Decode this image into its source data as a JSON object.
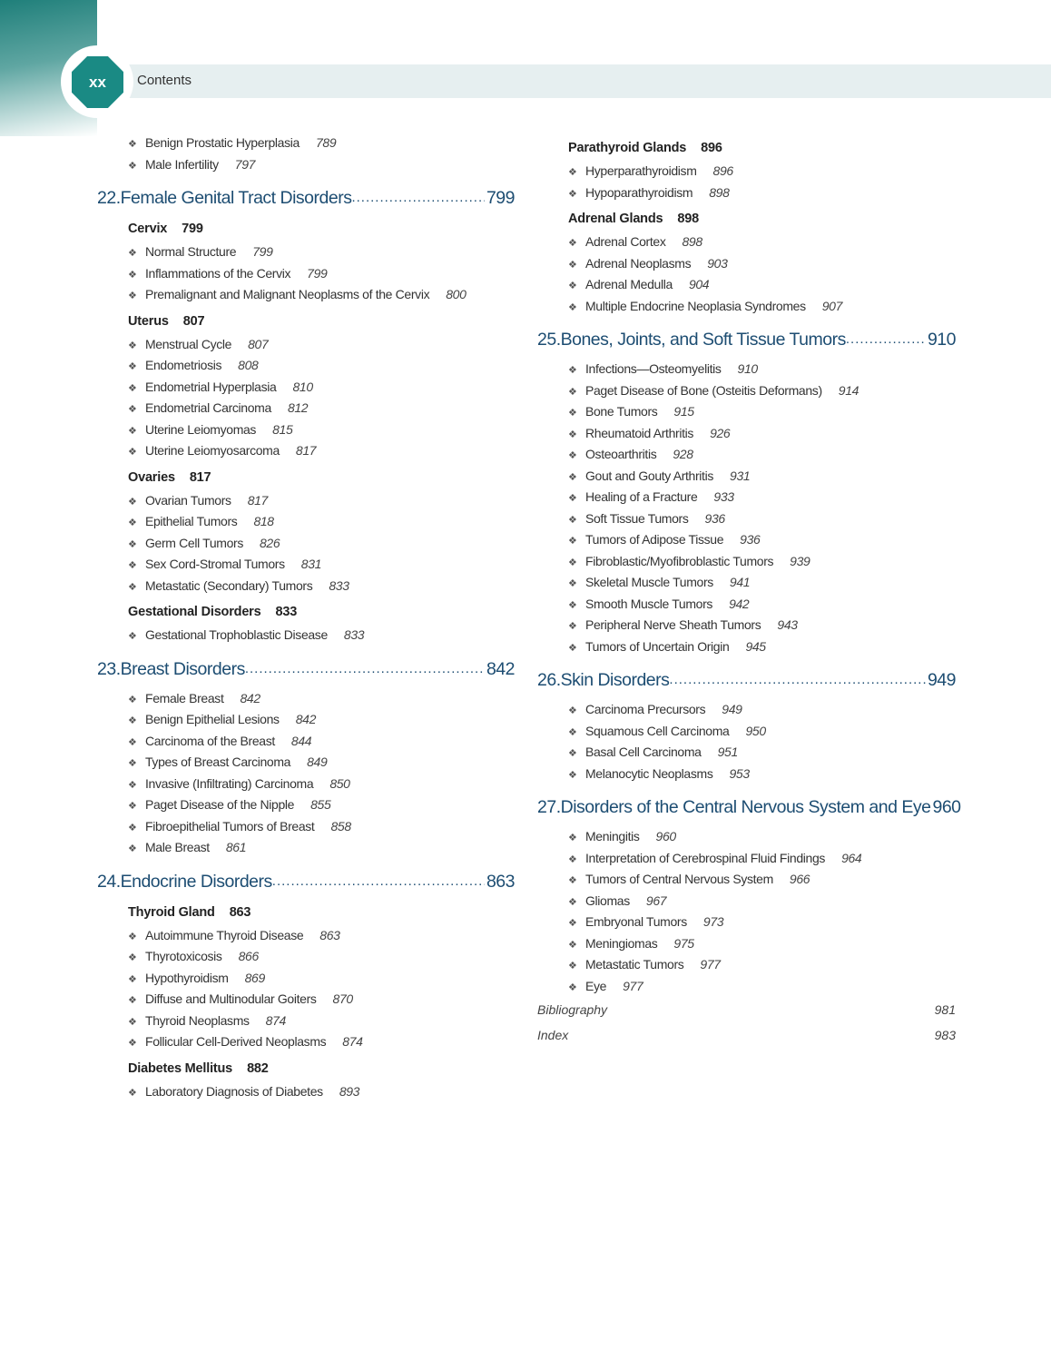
{
  "header": {
    "page_number": "xx",
    "title": "Contents",
    "accent": "#1a8a84"
  },
  "left": [
    {
      "type": "item",
      "text": "Benign Prostatic Hyperplasia",
      "page": "789"
    },
    {
      "type": "item",
      "text": "Male Infertility",
      "page": "797"
    },
    {
      "type": "chapter",
      "num": "22.",
      "text": "Female Genital Tract Disorders",
      "page": "799"
    },
    {
      "type": "sub",
      "text": "Cervix",
      "page": "799"
    },
    {
      "type": "item",
      "text": "Normal Structure",
      "page": "799"
    },
    {
      "type": "item",
      "text": "Inflammations of the Cervix",
      "page": "799"
    },
    {
      "type": "item",
      "text": "Premalignant and Malignant Neoplasms of the Cervix",
      "page": "800"
    },
    {
      "type": "sub",
      "text": "Uterus",
      "page": "807"
    },
    {
      "type": "item",
      "text": "Menstrual Cycle",
      "page": "807"
    },
    {
      "type": "item",
      "text": "Endometriosis",
      "page": "808"
    },
    {
      "type": "item",
      "text": "Endometrial Hyperplasia",
      "page": "810"
    },
    {
      "type": "item",
      "text": "Endometrial Carcinoma",
      "page": "812"
    },
    {
      "type": "item",
      "text": "Uterine Leiomyomas",
      "page": "815"
    },
    {
      "type": "item",
      "text": "Uterine Leiomyosarcoma",
      "page": "817"
    },
    {
      "type": "sub",
      "text": "Ovaries",
      "page": "817"
    },
    {
      "type": "item",
      "text": "Ovarian Tumors",
      "page": "817"
    },
    {
      "type": "item",
      "text": "Epithelial Tumors",
      "page": "818"
    },
    {
      "type": "item",
      "text": "Germ Cell Tumors",
      "page": "826"
    },
    {
      "type": "item",
      "text": "Sex Cord-Stromal Tumors",
      "page": "831"
    },
    {
      "type": "item",
      "text": "Metastatic (Secondary) Tumors",
      "page": "833"
    },
    {
      "type": "sub",
      "text": "Gestational Disorders",
      "page": "833"
    },
    {
      "type": "item",
      "text": "Gestational Trophoblastic Disease",
      "page": "833"
    },
    {
      "type": "chapter",
      "num": "23.",
      "text": "Breast Disorders",
      "page": "842"
    },
    {
      "type": "item",
      "text": "Female Breast",
      "page": "842"
    },
    {
      "type": "item",
      "text": "Benign Epithelial Lesions",
      "page": "842"
    },
    {
      "type": "item",
      "text": "Carcinoma of the Breast",
      "page": "844"
    },
    {
      "type": "item",
      "text": "Types of Breast Carcinoma",
      "page": "849"
    },
    {
      "type": "item",
      "text": "Invasive (Infiltrating) Carcinoma",
      "page": "850"
    },
    {
      "type": "item",
      "text": "Paget Disease of the Nipple",
      "page": "855"
    },
    {
      "type": "item",
      "text": "Fibroepithelial Tumors of Breast",
      "page": "858"
    },
    {
      "type": "item",
      "text": "Male Breast",
      "page": "861"
    },
    {
      "type": "chapter",
      "num": "24.",
      "text": "Endocrine Disorders",
      "page": "863"
    },
    {
      "type": "sub",
      "text": "Thyroid Gland",
      "page": "863"
    },
    {
      "type": "item",
      "text": "Autoimmune Thyroid Disease",
      "page": "863"
    },
    {
      "type": "item",
      "text": "Thyrotoxicosis",
      "page": "866"
    },
    {
      "type": "item",
      "text": "Hypothyroidism",
      "page": "869"
    },
    {
      "type": "item",
      "text": "Diffuse and Multinodular Goiters",
      "page": "870"
    },
    {
      "type": "item",
      "text": "Thyroid Neoplasms",
      "page": "874"
    },
    {
      "type": "item",
      "text": "Follicular Cell-Derived Neoplasms",
      "page": "874"
    },
    {
      "type": "sub",
      "text": "Diabetes Mellitus",
      "page": "882"
    },
    {
      "type": "item",
      "text": "Laboratory Diagnosis of Diabetes",
      "page": "893"
    }
  ],
  "right": [
    {
      "type": "sub",
      "text": "Parathyroid Glands",
      "page": "896"
    },
    {
      "type": "item",
      "text": "Hyperparathyroidism",
      "page": "896"
    },
    {
      "type": "item",
      "text": "Hypoparathyroidism",
      "page": "898"
    },
    {
      "type": "sub",
      "text": "Adrenal Glands",
      "page": "898"
    },
    {
      "type": "item",
      "text": "Adrenal Cortex",
      "page": "898"
    },
    {
      "type": "item",
      "text": "Adrenal Neoplasms",
      "page": "903"
    },
    {
      "type": "item",
      "text": "Adrenal Medulla",
      "page": "904"
    },
    {
      "type": "item",
      "text": "Multiple Endocrine Neoplasia Syndromes",
      "page": "907"
    },
    {
      "type": "chapter",
      "num": "25.",
      "text": "Bones, Joints, and Soft Tissue Tumors",
      "page": "910"
    },
    {
      "type": "item",
      "text": "Infections—Osteomyelitis",
      "page": "910"
    },
    {
      "type": "item",
      "text": "Paget Disease of Bone (Osteitis Deformans)",
      "page": "914"
    },
    {
      "type": "item",
      "text": "Bone Tumors",
      "page": "915"
    },
    {
      "type": "item",
      "text": "Rheumatoid Arthritis",
      "page": "926"
    },
    {
      "type": "item",
      "text": "Osteoarthritis",
      "page": "928"
    },
    {
      "type": "item",
      "text": "Gout and Gouty Arthritis",
      "page": "931"
    },
    {
      "type": "item",
      "text": "Healing of a Fracture",
      "page": "933"
    },
    {
      "type": "item",
      "text": "Soft Tissue Tumors",
      "page": "936"
    },
    {
      "type": "item",
      "text": "Tumors of Adipose Tissue",
      "page": "936"
    },
    {
      "type": "item",
      "text": "Fibroblastic/Myofibroblastic Tumors",
      "page": "939"
    },
    {
      "type": "item",
      "text": "Skeletal Muscle Tumors",
      "page": "941"
    },
    {
      "type": "item",
      "text": "Smooth Muscle Tumors",
      "page": "942"
    },
    {
      "type": "item",
      "text": "Peripheral Nerve Sheath Tumors",
      "page": "943"
    },
    {
      "type": "item",
      "text": "Tumors of Uncertain Origin",
      "page": "945"
    },
    {
      "type": "chapter",
      "num": "26.",
      "text": "Skin Disorders",
      "page": "949"
    },
    {
      "type": "item",
      "text": "Carcinoma Precursors",
      "page": "949"
    },
    {
      "type": "item",
      "text": "Squamous Cell Carcinoma",
      "page": "950"
    },
    {
      "type": "item",
      "text": "Basal Cell Carcinoma",
      "page": "951"
    },
    {
      "type": "item",
      "text": "Melanocytic Neoplasms",
      "page": "953"
    },
    {
      "type": "chapter",
      "num": "27.",
      "text": "Disorders of the Central Nervous System and Eye",
      "page": "960"
    },
    {
      "type": "item",
      "text": "Meningitis",
      "page": "960"
    },
    {
      "type": "item",
      "text": "Interpretation of Cerebrospinal Fluid Findings",
      "page": "964"
    },
    {
      "type": "item",
      "text": "Tumors of Central Nervous System",
      "page": "966"
    },
    {
      "type": "item",
      "text": "Gliomas",
      "page": "967"
    },
    {
      "type": "item",
      "text": "Embryonal Tumors",
      "page": "973"
    },
    {
      "type": "item",
      "text": "Meningiomas",
      "page": "975"
    },
    {
      "type": "item",
      "text": "Metastatic Tumors",
      "page": "977"
    },
    {
      "type": "item",
      "text": "Eye",
      "page": "977"
    },
    {
      "type": "back",
      "text": "Bibliography",
      "page": "981"
    },
    {
      "type": "back",
      "text": "Index",
      "page": "983"
    }
  ],
  "bullet_icon": "four-diamond-bullet"
}
